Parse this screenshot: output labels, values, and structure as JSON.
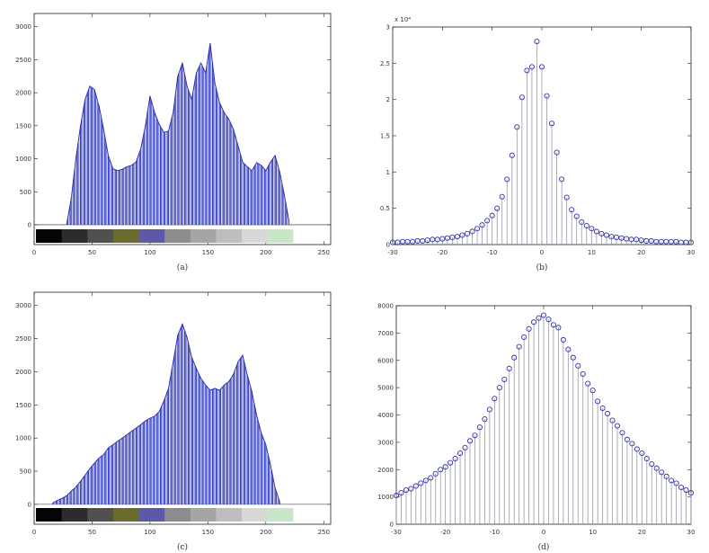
{
  "chart_data": [
    {
      "id": "a",
      "type": "bar",
      "subtype": "histogram",
      "caption": "(a)",
      "xlim": [
        0,
        256
      ],
      "ylim": [
        -300,
        3200
      ],
      "xticks": [
        0,
        50,
        100,
        150,
        200,
        250
      ],
      "yticks": [
        0,
        500,
        1000,
        1500,
        2000,
        2500,
        3000
      ],
      "grid": false,
      "bar_color": "#3a46c8",
      "x": [
        28,
        32,
        36,
        40,
        44,
        48,
        52,
        56,
        60,
        64,
        68,
        72,
        76,
        80,
        84,
        88,
        92,
        96,
        100,
        104,
        108,
        112,
        116,
        120,
        124,
        128,
        132,
        136,
        140,
        144,
        148,
        152,
        156,
        160,
        164,
        168,
        172,
        176,
        180,
        184,
        188,
        192,
        196,
        200,
        204,
        208,
        212,
        216,
        220
      ],
      "values": [
        0,
        400,
        1000,
        1500,
        1900,
        2100,
        2050,
        1800,
        1450,
        1050,
        850,
        820,
        840,
        880,
        900,
        950,
        1150,
        1500,
        1950,
        1700,
        1520,
        1400,
        1420,
        1700,
        2250,
        2450,
        2100,
        1900,
        2300,
        2450,
        2300,
        2750,
        2150,
        1850,
        1700,
        1600,
        1450,
        1200,
        950,
        880,
        820,
        940,
        900,
        820,
        950,
        1050,
        800,
        450,
        60
      ],
      "colorbar": [
        "#050505",
        "#2c2c2c",
        "#505050",
        "#6b6b2e",
        "#5a5aa8",
        "#8c8c8c",
        "#a5a5a5",
        "#bebebe",
        "#d8d8d8",
        "#c9e6c9",
        "#ffffff"
      ]
    },
    {
      "id": "b",
      "type": "stem",
      "caption": "(b)",
      "xlim": [
        -30,
        30
      ],
      "ylim": [
        0,
        3
      ],
      "xticks": [
        -30,
        -20,
        -10,
        0,
        10,
        20,
        30
      ],
      "yticks": [
        0,
        0.5,
        1,
        1.5,
        2,
        2.5,
        3
      ],
      "yticklabels": [
        "0",
        "0.5",
        "1",
        "1.5",
        "2",
        "2.5",
        "3"
      ],
      "yexponent": "x 10⁴",
      "grid": false,
      "marker_color": "#3030b0",
      "x": [
        -30,
        -29,
        -28,
        -27,
        -26,
        -25,
        -24,
        -23,
        -22,
        -21,
        -20,
        -19,
        -18,
        -17,
        -16,
        -15,
        -14,
        -13,
        -12,
        -11,
        -10,
        -9,
        -8,
        -7,
        -6,
        -5,
        -4,
        -3,
        -2,
        -1,
        0,
        1,
        2,
        3,
        4,
        5,
        6,
        7,
        8,
        9,
        10,
        11,
        12,
        13,
        14,
        15,
        16,
        17,
        18,
        19,
        20,
        21,
        22,
        23,
        24,
        25,
        26,
        27,
        28,
        29,
        30
      ],
      "values": [
        0.03,
        0.03,
        0.04,
        0.04,
        0.04,
        0.05,
        0.05,
        0.06,
        0.07,
        0.07,
        0.08,
        0.09,
        0.1,
        0.11,
        0.13,
        0.15,
        0.18,
        0.22,
        0.27,
        0.33,
        0.4,
        0.5,
        0.66,
        0.9,
        1.23,
        1.62,
        2.03,
        2.4,
        2.45,
        2.8,
        2.45,
        2.05,
        1.67,
        1.27,
        0.9,
        0.65,
        0.48,
        0.39,
        0.31,
        0.26,
        0.22,
        0.18,
        0.15,
        0.13,
        0.11,
        0.1,
        0.09,
        0.08,
        0.07,
        0.07,
        0.06,
        0.05,
        0.05,
        0.04,
        0.04,
        0.04,
        0.04,
        0.04,
        0.03,
        0.03,
        0.03
      ]
    },
    {
      "id": "c",
      "type": "bar",
      "subtype": "histogram",
      "caption": "(c)",
      "xlim": [
        0,
        256
      ],
      "ylim": [
        -300,
        3200
      ],
      "xticks": [
        0,
        50,
        100,
        150,
        200,
        250
      ],
      "yticks": [
        0,
        500,
        1000,
        1500,
        2000,
        2500,
        3000
      ],
      "grid": false,
      "bar_color": "#3a46c8",
      "x": [
        16,
        20,
        24,
        28,
        32,
        36,
        40,
        44,
        48,
        52,
        56,
        60,
        64,
        68,
        72,
        76,
        80,
        84,
        88,
        92,
        96,
        100,
        104,
        108,
        112,
        116,
        120,
        124,
        128,
        132,
        136,
        140,
        144,
        148,
        152,
        156,
        160,
        164,
        168,
        172,
        176,
        180,
        184,
        188,
        192,
        196,
        200,
        204,
        208,
        212
      ],
      "values": [
        20,
        60,
        90,
        130,
        200,
        260,
        350,
        440,
        540,
        620,
        700,
        750,
        850,
        900,
        950,
        1000,
        1050,
        1100,
        1150,
        1200,
        1260,
        1300,
        1330,
        1400,
        1560,
        1750,
        2150,
        2550,
        2720,
        2520,
        2220,
        2050,
        1900,
        1800,
        1720,
        1750,
        1720,
        1800,
        1850,
        1960,
        2150,
        2250,
        1950,
        1700,
        1350,
        1080,
        900,
        600,
        250,
        40
      ],
      "colorbar": [
        "#050505",
        "#2c2c2c",
        "#505050",
        "#6b6b2e",
        "#5a5aa8",
        "#8c8c8c",
        "#a5a5a5",
        "#bebebe",
        "#d8d8d8",
        "#c9e6c9",
        "#ffffff"
      ]
    },
    {
      "id": "d",
      "type": "stem",
      "caption": "(d)",
      "xlim": [
        -30,
        30
      ],
      "ylim": [
        0,
        8000
      ],
      "xticks": [
        -30,
        -20,
        -10,
        0,
        10,
        20,
        30
      ],
      "yticks": [
        0,
        1000,
        2000,
        3000,
        4000,
        5000,
        6000,
        7000,
        8000
      ],
      "grid": false,
      "marker_color": "#3030b0",
      "x": [
        -30,
        -29,
        -28,
        -27,
        -26,
        -25,
        -24,
        -23,
        -22,
        -21,
        -20,
        -19,
        -18,
        -17,
        -16,
        -15,
        -14,
        -13,
        -12,
        -11,
        -10,
        -9,
        -8,
        -7,
        -6,
        -5,
        -4,
        -3,
        -2,
        -1,
        0,
        1,
        2,
        3,
        4,
        5,
        6,
        7,
        8,
        9,
        10,
        11,
        12,
        13,
        14,
        15,
        16,
        17,
        18,
        19,
        20,
        21,
        22,
        23,
        24,
        25,
        26,
        27,
        28,
        29,
        30
      ],
      "values": [
        1050,
        1150,
        1250,
        1300,
        1400,
        1500,
        1600,
        1700,
        1850,
        2000,
        2100,
        2250,
        2400,
        2600,
        2800,
        3050,
        3250,
        3550,
        3850,
        4200,
        4600,
        5000,
        5300,
        5700,
        6100,
        6500,
        6850,
        7150,
        7400,
        7550,
        7650,
        7500,
        7300,
        7200,
        6750,
        6400,
        6100,
        5800,
        5500,
        5150,
        4900,
        4500,
        4250,
        4050,
        3800,
        3600,
        3350,
        3100,
        2950,
        2750,
        2600,
        2400,
        2200,
        2050,
        1900,
        1750,
        1600,
        1500,
        1350,
        1250,
        1150
      ]
    }
  ]
}
